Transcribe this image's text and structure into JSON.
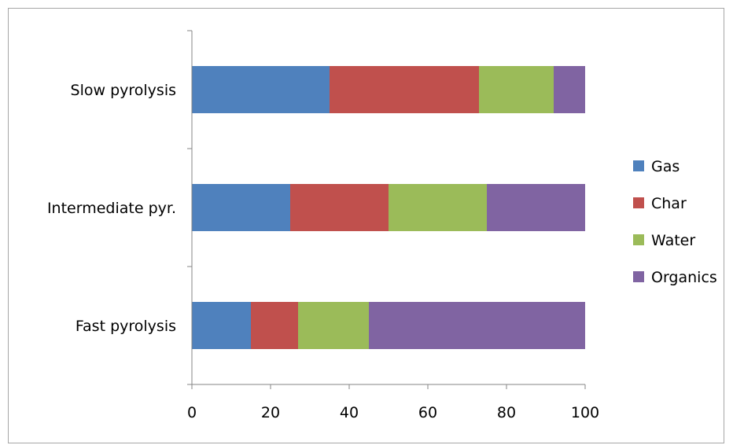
{
  "chart_data": {
    "type": "bar",
    "orientation": "horizontal",
    "stacked": true,
    "categories": [
      "Slow pyrolysis",
      "Intermediate pyr.",
      "Fast pyrolysis"
    ],
    "series": [
      {
        "name": "Gas",
        "values": [
          35,
          25,
          15
        ],
        "color": "#4f81bd"
      },
      {
        "name": "Char",
        "values": [
          38,
          25,
          12
        ],
        "color": "#c0504d"
      },
      {
        "name": "Water",
        "values": [
          19,
          25,
          18
        ],
        "color": "#9bbb59"
      },
      {
        "name": "Organics",
        "values": [
          8,
          25,
          55
        ],
        "color": "#8064a2"
      }
    ],
    "xlim": [
      0,
      100
    ],
    "xticks": [
      0,
      20,
      40,
      60,
      80,
      100
    ],
    "title": "",
    "xlabel": "",
    "ylabel": "",
    "grid": false,
    "legend_position": "right"
  }
}
